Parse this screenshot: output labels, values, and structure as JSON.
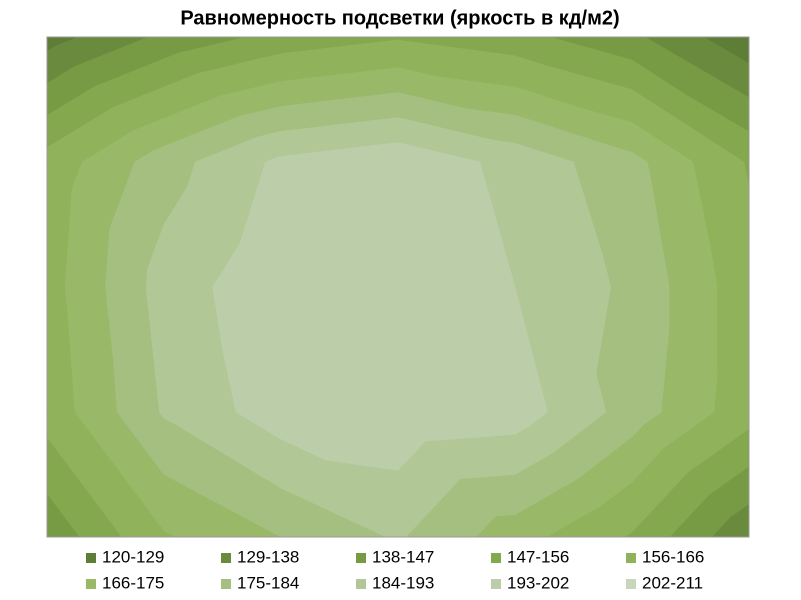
{
  "chart_data": {
    "type": "contour",
    "title": "Равномерность подсветки (яркость в кд/м2)",
    "z": [
      [
        125,
        140,
        150,
        155,
        150,
        140,
        122
      ],
      [
        160,
        180,
        195,
        200,
        190,
        178,
        155
      ],
      [
        162,
        188,
        200,
        196,
        193,
        182,
        160
      ],
      [
        160,
        185,
        198,
        200,
        198,
        180,
        160
      ],
      [
        140,
        165,
        175,
        185,
        170,
        155,
        130
      ]
    ],
    "bands": [
      {
        "name": "120-129",
        "color": "#5e7d36"
      },
      {
        "name": "129-138",
        "color": "#6a8b3d"
      },
      {
        "name": "138-147",
        "color": "#779a44"
      },
      {
        "name": "147-156",
        "color": "#84a84d"
      },
      {
        "name": "156-166",
        "color": "#90b25a"
      },
      {
        "name": "166-175",
        "color": "#99b868"
      },
      {
        "name": "175-184",
        "color": "#a5bf80"
      },
      {
        "name": "184-193",
        "color": "#b1c796"
      },
      {
        "name": "193-202",
        "color": "#bccda9"
      },
      {
        "name": "202-211",
        "color": "#c8d6bc"
      }
    ]
  }
}
